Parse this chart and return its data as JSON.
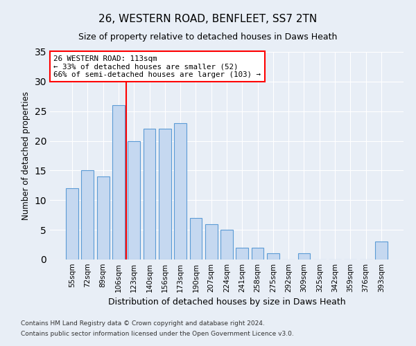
{
  "title": "26, WESTERN ROAD, BENFLEET, SS7 2TN",
  "subtitle": "Size of property relative to detached houses in Daws Heath",
  "xlabel": "Distribution of detached houses by size in Daws Heath",
  "ylabel": "Number of detached properties",
  "categories": [
    "55sqm",
    "72sqm",
    "89sqm",
    "106sqm",
    "123sqm",
    "140sqm",
    "156sqm",
    "173sqm",
    "190sqm",
    "207sqm",
    "224sqm",
    "241sqm",
    "258sqm",
    "275sqm",
    "292sqm",
    "309sqm",
    "325sqm",
    "342sqm",
    "359sqm",
    "376sqm",
    "393sqm"
  ],
  "values": [
    12,
    15,
    14,
    26,
    20,
    22,
    22,
    23,
    7,
    6,
    5,
    2,
    2,
    1,
    0,
    1,
    0,
    0,
    0,
    0,
    3
  ],
  "bar_color": "#c5d8f0",
  "bar_edge_color": "#5b9bd5",
  "vline_index": 3,
  "vline_color": "red",
  "annotation_line1": "26 WESTERN ROAD: 113sqm",
  "annotation_line2": "← 33% of detached houses are smaller (52)",
  "annotation_line3": "66% of semi-detached houses are larger (103) →",
  "annotation_box_color": "white",
  "annotation_box_edge": "red",
  "ylim": [
    0,
    35
  ],
  "yticks": [
    0,
    5,
    10,
    15,
    20,
    25,
    30,
    35
  ],
  "footer1": "Contains HM Land Registry data © Crown copyright and database right 2024.",
  "footer2": "Contains public sector information licensed under the Open Government Licence v3.0.",
  "background_color": "#e8eef6",
  "plot_bg_color": "#e8eef6"
}
